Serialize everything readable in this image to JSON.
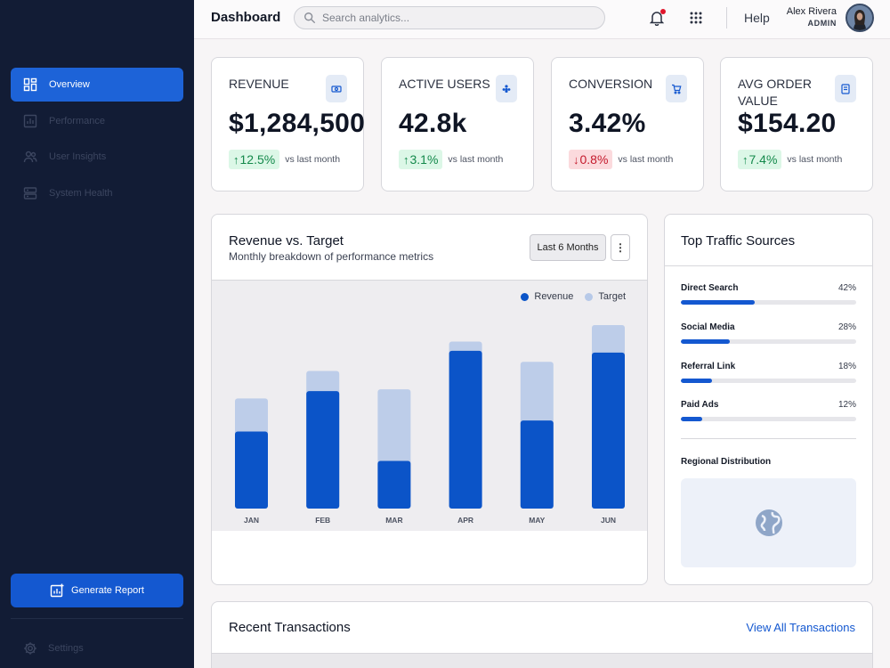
{
  "sidebar": {
    "items": [
      {
        "label": "Overview",
        "icon": "dashboard-icon"
      },
      {
        "label": "Performance",
        "icon": "bar-chart-icon"
      },
      {
        "label": "User Insights",
        "icon": "users-icon"
      },
      {
        "label": "System Health",
        "icon": "server-icon"
      }
    ],
    "generate_label": "Generate Report",
    "settings_label": "Settings"
  },
  "header": {
    "title": "Dashboard",
    "search_placeholder": "Search analytics...",
    "help_label": "Help",
    "user_name": "Alex Rivera",
    "user_role": "ADMIN"
  },
  "kpis": [
    {
      "label": "REVENUE",
      "value": "$1,284,500",
      "change": "12.5%",
      "direction": "up",
      "note": "vs last month",
      "icon": "money-icon"
    },
    {
      "label": "ACTIVE USERS",
      "value": "42.8k",
      "change": "3.1%",
      "direction": "up",
      "note": "vs last month",
      "icon": "user-group-icon"
    },
    {
      "label": "CONVERSION",
      "value": "3.42%",
      "change": "0.8%",
      "direction": "down",
      "note": "vs last month",
      "icon": "cart-icon"
    },
    {
      "label": "AVG ORDER VALUE",
      "value": "$154.20",
      "change": "7.4%",
      "direction": "up",
      "note": "vs last month",
      "icon": "receipt-icon"
    }
  ],
  "revenue_chart": {
    "title": "Revenue vs. Target",
    "subtitle": "Monthly breakdown of performance metrics",
    "period_label": "Last 6 Months",
    "more_label": "⋮"
  },
  "chart_data": {
    "type": "bar",
    "categories": [
      "JAN",
      "FEB",
      "MAR",
      "APR",
      "MAY",
      "JUN"
    ],
    "series": [
      {
        "name": "Revenue",
        "values": [
          0.42,
          0.64,
          0.26,
          0.86,
          0.48,
          0.85
        ],
        "color": "#0b54c8"
      },
      {
        "name": "Target",
        "values": [
          0.6,
          0.75,
          0.65,
          0.91,
          0.8,
          1.0
        ],
        "color": "#bdcde9"
      }
    ],
    "ylim": [
      0,
      1
    ],
    "grid": false,
    "legend": "top-right"
  },
  "traffic": {
    "title": "Top Traffic Sources",
    "sources": [
      {
        "name": "Direct Search",
        "pct": "42%",
        "value": 42
      },
      {
        "name": "Social Media",
        "pct": "28%",
        "value": 28
      },
      {
        "name": "Referral Link",
        "pct": "18%",
        "value": 18
      },
      {
        "name": "Paid Ads",
        "pct": "12%",
        "value": 12
      }
    ],
    "region_title": "Regional Distribution"
  },
  "transactions": {
    "title": "Recent Transactions",
    "view_all": "View All Transactions"
  },
  "colors": {
    "accent": "#1458d0",
    "sidebar": "#121c35",
    "positive": "#14894b",
    "negative": "#c41a2c"
  }
}
